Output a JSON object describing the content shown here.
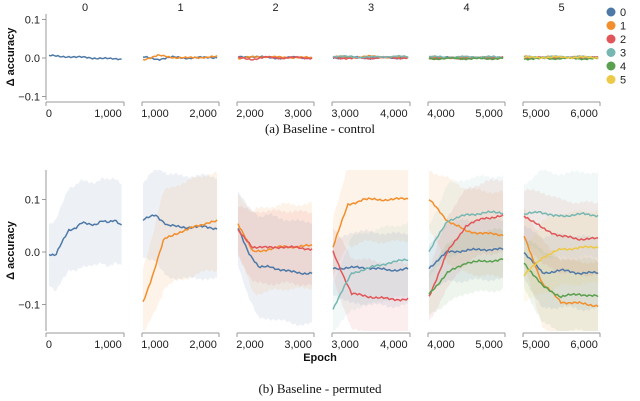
{
  "chart_data": [
    {
      "type": "line",
      "title": "(a) Baseline - control",
      "ylabel": "Δ accuracy",
      "ylim": [
        -0.1,
        0.1
      ],
      "yticks": [
        "0.1",
        "0.0",
        "−0.1"
      ],
      "ytick_values": [
        0.1,
        0,
        -0.1
      ],
      "legend": {
        "placement": "right",
        "entries": [
          "0",
          "1",
          "2",
          "3",
          "4",
          "5"
        ]
      },
      "colors": [
        "#4e79a7",
        "#f28e2b",
        "#e15759",
        "#76b7b2",
        "#59a14f",
        "#edc948"
      ],
      "panels": [
        {
          "title": "0",
          "xlim": [
            -50,
            1270
          ],
          "xticks": [
            0,
            1000
          ],
          "xtick_labels": [
            "0",
            "1,000"
          ],
          "series": [
            {
              "name": "0",
              "keys": [
                0.007,
                0.003,
                0.004,
                0.002,
                0,
                0,
                -0.003,
                -0.002
              ],
              "band": 0
            }
          ]
        },
        {
          "title": "1",
          "xlim": [
            730,
            2330
          ],
          "xticks": [
            1000,
            2000
          ],
          "xtick_labels": [
            "1,000",
            "2,000"
          ],
          "series": [
            {
              "name": "0",
              "keys": [
                0.002,
                -0.003,
                0.002,
                0,
                0.001,
                0.002
              ],
              "band": 0
            },
            {
              "name": "1",
              "keys": [
                -0.004,
                0.006,
                0.002,
                0,
                0.002,
                0.003
              ],
              "band": 0
            }
          ]
        },
        {
          "title": "2",
          "xlim": [
            1730,
            3330
          ],
          "xticks": [
            2000,
            3000
          ],
          "xtick_labels": [
            "2,000",
            "3,000"
          ],
          "series": [
            {
              "name": "0",
              "keys": [
                0.002,
                0.004,
                0.001,
                0,
                0.002,
                0
              ],
              "band": 0
            },
            {
              "name": "1",
              "keys": [
                0,
                0.002,
                0.004,
                0.001,
                0.002,
                0
              ],
              "band": 0
            },
            {
              "name": "2",
              "keys": [
                0,
                -0.003,
                0.002,
                0,
                0.001,
                0
              ],
              "band": 0
            }
          ]
        },
        {
          "title": "3",
          "xlim": [
            2730,
            4330
          ],
          "xticks": [
            3000,
            4000
          ],
          "xtick_labels": [
            "3,000",
            "4,000"
          ],
          "series": [
            {
              "name": "0",
              "keys": [
                0,
                0.002,
                0,
                0.001,
                0
              ],
              "band": 0
            },
            {
              "name": "1",
              "keys": [
                0.003,
                0.002,
                0.004,
                0.002,
                0.003
              ],
              "band": 0
            },
            {
              "name": "2",
              "keys": [
                0.001,
                -0.001,
                0,
                0.001,
                0
              ],
              "band": 0
            },
            {
              "name": "3",
              "keys": [
                0.004,
                0.003,
                0.002,
                0.004,
                0.003
              ],
              "band": 0
            }
          ]
        },
        {
          "title": "4",
          "xlim": [
            3730,
            5330
          ],
          "xticks": [
            4000,
            5000
          ],
          "xtick_labels": [
            "4,000",
            "5,000"
          ],
          "series": [
            {
              "name": "0",
              "keys": [
                0,
                0.001,
                0,
                0
              ],
              "band": 0
            },
            {
              "name": "1",
              "keys": [
                0.002,
                0.001,
                0.002,
                0.001
              ],
              "band": 0
            },
            {
              "name": "2",
              "keys": [
                0,
                -0.001,
                0,
                0.001
              ],
              "band": 0
            },
            {
              "name": "3",
              "keys": [
                0.003,
                0.002,
                0.003,
                0.002
              ],
              "band": 0
            },
            {
              "name": "4",
              "keys": [
                -0.002,
                -0.001,
                -0.002,
                -0.001
              ],
              "band": 0
            }
          ]
        },
        {
          "title": "5",
          "xlim": [
            4730,
            6330
          ],
          "xticks": [
            5000,
            6000
          ],
          "xtick_labels": [
            "5,000",
            "6,000"
          ],
          "series": [
            {
              "name": "0",
              "keys": [
                0,
                0.001,
                0
              ],
              "band": 0
            },
            {
              "name": "1",
              "keys": [
                0.003,
                0.002,
                0.003
              ],
              "band": 0
            },
            {
              "name": "2",
              "keys": [
                0.001,
                0,
                0.001
              ],
              "band": 0
            },
            {
              "name": "3",
              "keys": [
                0.002,
                0.003,
                0.002
              ],
              "band": 0
            },
            {
              "name": "4",
              "keys": [
                -0.002,
                -0.001,
                -0.002
              ],
              "band": 0
            },
            {
              "name": "5",
              "keys": [
                0.001,
                0.002,
                0.001
              ],
              "band": 0
            }
          ]
        }
      ]
    },
    {
      "type": "line",
      "title": "(b) Baseline - permuted",
      "xlabel": "Epoch",
      "ylabel": "Δ accuracy",
      "ylim": [
        -0.15,
        0.15
      ],
      "yticks": [
        "0.1",
        "0.0",
        "−0.1"
      ],
      "ytick_values": [
        0.1,
        0,
        -0.1
      ],
      "panels": [
        {
          "xlim": [
            -50,
            1270
          ],
          "xticks": [
            0,
            1000
          ],
          "xtick_labels": [
            "0",
            "1,000"
          ],
          "series": [
            {
              "name": "0",
              "keys": [
                -0.005,
                -0.008,
                0.02,
                0.043,
                0.045,
                0.055,
                0.053,
                0.053,
                0.06,
                0.055,
                0.06,
                0.052
              ],
              "band": 0.07
            }
          ]
        },
        {
          "xlim": [
            730,
            2330
          ],
          "xticks": [
            1000,
            2000
          ],
          "xtick_labels": [
            "1,000",
            "2,000"
          ],
          "series": [
            {
              "name": "0",
              "keys": [
                0.06,
                0.072,
                0.05,
                0.048,
                0.047,
                0.048,
                0.045
              ],
              "band": 0.085
            },
            {
              "name": "1",
              "keys": [
                -0.095,
                -0.04,
                0.025,
                0.035,
                0.04,
                0.05,
                0.055,
                0.058
              ],
              "band": 0.08
            }
          ]
        },
        {
          "xlim": [
            1730,
            3330
          ],
          "xticks": [
            2000,
            3000
          ],
          "xtick_labels": [
            "2,000",
            "3,000"
          ],
          "series": [
            {
              "name": "0",
              "keys": [
                0.045,
                0,
                -0.03,
                -0.028,
                -0.033,
                -0.038,
                -0.04,
                -0.04
              ],
              "band": 0.085
            },
            {
              "name": "1",
              "keys": [
                0.055,
                0,
                0.005,
                0.01,
                0.01,
                0.012
              ],
              "band": 0.07
            },
            {
              "name": "2",
              "keys": [
                0.04,
                0.01,
                0.008,
                0.01,
                0.008,
                0.006
              ],
              "band": 0.06
            }
          ]
        },
        {
          "xlim": [
            2730,
            4330
          ],
          "xticks": [
            3000,
            4000
          ],
          "xtick_labels": [
            "3,000",
            "4,000"
          ],
          "series": [
            {
              "name": "0",
              "keys": [
                -0.031,
                -0.03,
                -0.03,
                -0.035,
                -0.032
              ],
              "band": 0.06
            },
            {
              "name": "1",
              "keys": [
                0.01,
                0.09,
                0.1,
                0.1,
                0.1,
                0.102
              ],
              "band": 0.07
            },
            {
              "name": "2",
              "keys": [
                0,
                -0.08,
                -0.085,
                -0.09,
                -0.09
              ],
              "band": 0.06
            },
            {
              "name": "3",
              "keys": [
                -0.108,
                -0.04,
                -0.03,
                -0.02,
                -0.015
              ],
              "band": 0.06
            }
          ]
        },
        {
          "xlim": [
            3730,
            5330
          ],
          "xticks": [
            4000,
            5000
          ],
          "xtick_labels": [
            "4,000",
            "5,000"
          ],
          "series": [
            {
              "name": "0",
              "keys": [
                -0.03,
                0,
                0.003,
                0.005,
                0.005
              ],
              "band": 0.05
            },
            {
              "name": "1",
              "keys": [
                0.1,
                0.06,
                0.04,
                0.035,
                0.033
              ],
              "band": 0.07
            },
            {
              "name": "2",
              "keys": [
                -0.085,
                0,
                0.05,
                0.065,
                0.068
              ],
              "band": 0.06
            },
            {
              "name": "3",
              "keys": [
                0,
                0.06,
                0.07,
                0.075,
                0.075
              ],
              "band": 0.06
            },
            {
              "name": "4",
              "keys": [
                -0.08,
                -0.04,
                -0.02,
                -0.018,
                -0.014
              ],
              "band": 0.05
            }
          ]
        },
        {
          "xlim": [
            4730,
            6330
          ],
          "xticks": [
            5000,
            6000
          ],
          "xtick_labels": [
            "5,000",
            "6,000"
          ],
          "series": [
            {
              "name": "0",
              "keys": [
                0,
                -0.04,
                -0.035,
                -0.04,
                -0.04
              ],
              "band": 0.06
            },
            {
              "name": "1",
              "keys": [
                0.03,
                -0.06,
                -0.095,
                -0.098,
                -0.102
              ],
              "band": 0.07
            },
            {
              "name": "2",
              "keys": [
                0.07,
                0.045,
                0.03,
                0.025,
                0.025
              ],
              "band": 0.06
            },
            {
              "name": "3",
              "keys": [
                0.07,
                0.078,
                0.068,
                0.07,
                0.072,
                0.07
              ],
              "band": 0.07
            },
            {
              "name": "4",
              "keys": [
                -0.02,
                -0.065,
                -0.085,
                -0.08,
                -0.085
              ],
              "band": 0.06
            },
            {
              "name": "5",
              "keys": [
                -0.045,
                -0.01,
                0.005,
                0.008,
                0.01
              ],
              "band": 0.06
            }
          ]
        }
      ]
    }
  ]
}
